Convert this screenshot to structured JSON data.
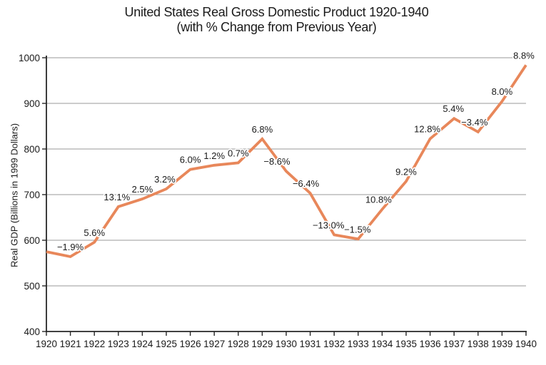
{
  "chart_data": {
    "type": "line",
    "title": "United States Real Gross Domestic Product 1920-1940",
    "subtitle": "(with % Change from Previous Year)",
    "ylabel": "Real GDP (Billions in 1999 Dollars)",
    "xlabel": "",
    "ylim": [
      400,
      1000
    ],
    "ytick_step": 100,
    "grid": "horizontal",
    "legend_position": "none",
    "years": [
      1920,
      1921,
      1922,
      1923,
      1924,
      1925,
      1926,
      1927,
      1928,
      1929,
      1930,
      1931,
      1932,
      1933,
      1934,
      1935,
      1936,
      1937,
      1938,
      1939,
      1940
    ],
    "values": [
      574.9,
      564.0,
      595.6,
      673.6,
      690.4,
      712.5,
      755.2,
      764.3,
      769.7,
      822.0,
      751.3,
      703.2,
      611.8,
      602.6,
      667.7,
      729.1,
      822.4,
      866.8,
      837.3,
      904.3,
      983.9
    ],
    "pct_change_labels": [
      "",
      "−1.9%",
      "5.6%",
      "13.1%",
      "2.5%",
      "3.2%",
      "6.0%",
      "1.2%",
      "0.7%",
      "6.8%",
      "−8.6%",
      "−6.4%",
      "−13.0%",
      "−1.5%",
      "10.8%",
      "9.2%",
      "12.8%",
      "5.4%",
      "−3.4%",
      "8.0%",
      "8.8%"
    ],
    "label_dx": [
      0,
      0,
      0,
      -2,
      0,
      -2,
      0,
      0,
      0,
      0,
      -13,
      -6,
      -8,
      -1,
      -5,
      0,
      -4,
      -1,
      -5,
      0,
      -3
    ],
    "line_color": "#E8875A",
    "grid_color": "#999999",
    "axis_color": "#262626",
    "text_color": "#1A1A1A"
  }
}
